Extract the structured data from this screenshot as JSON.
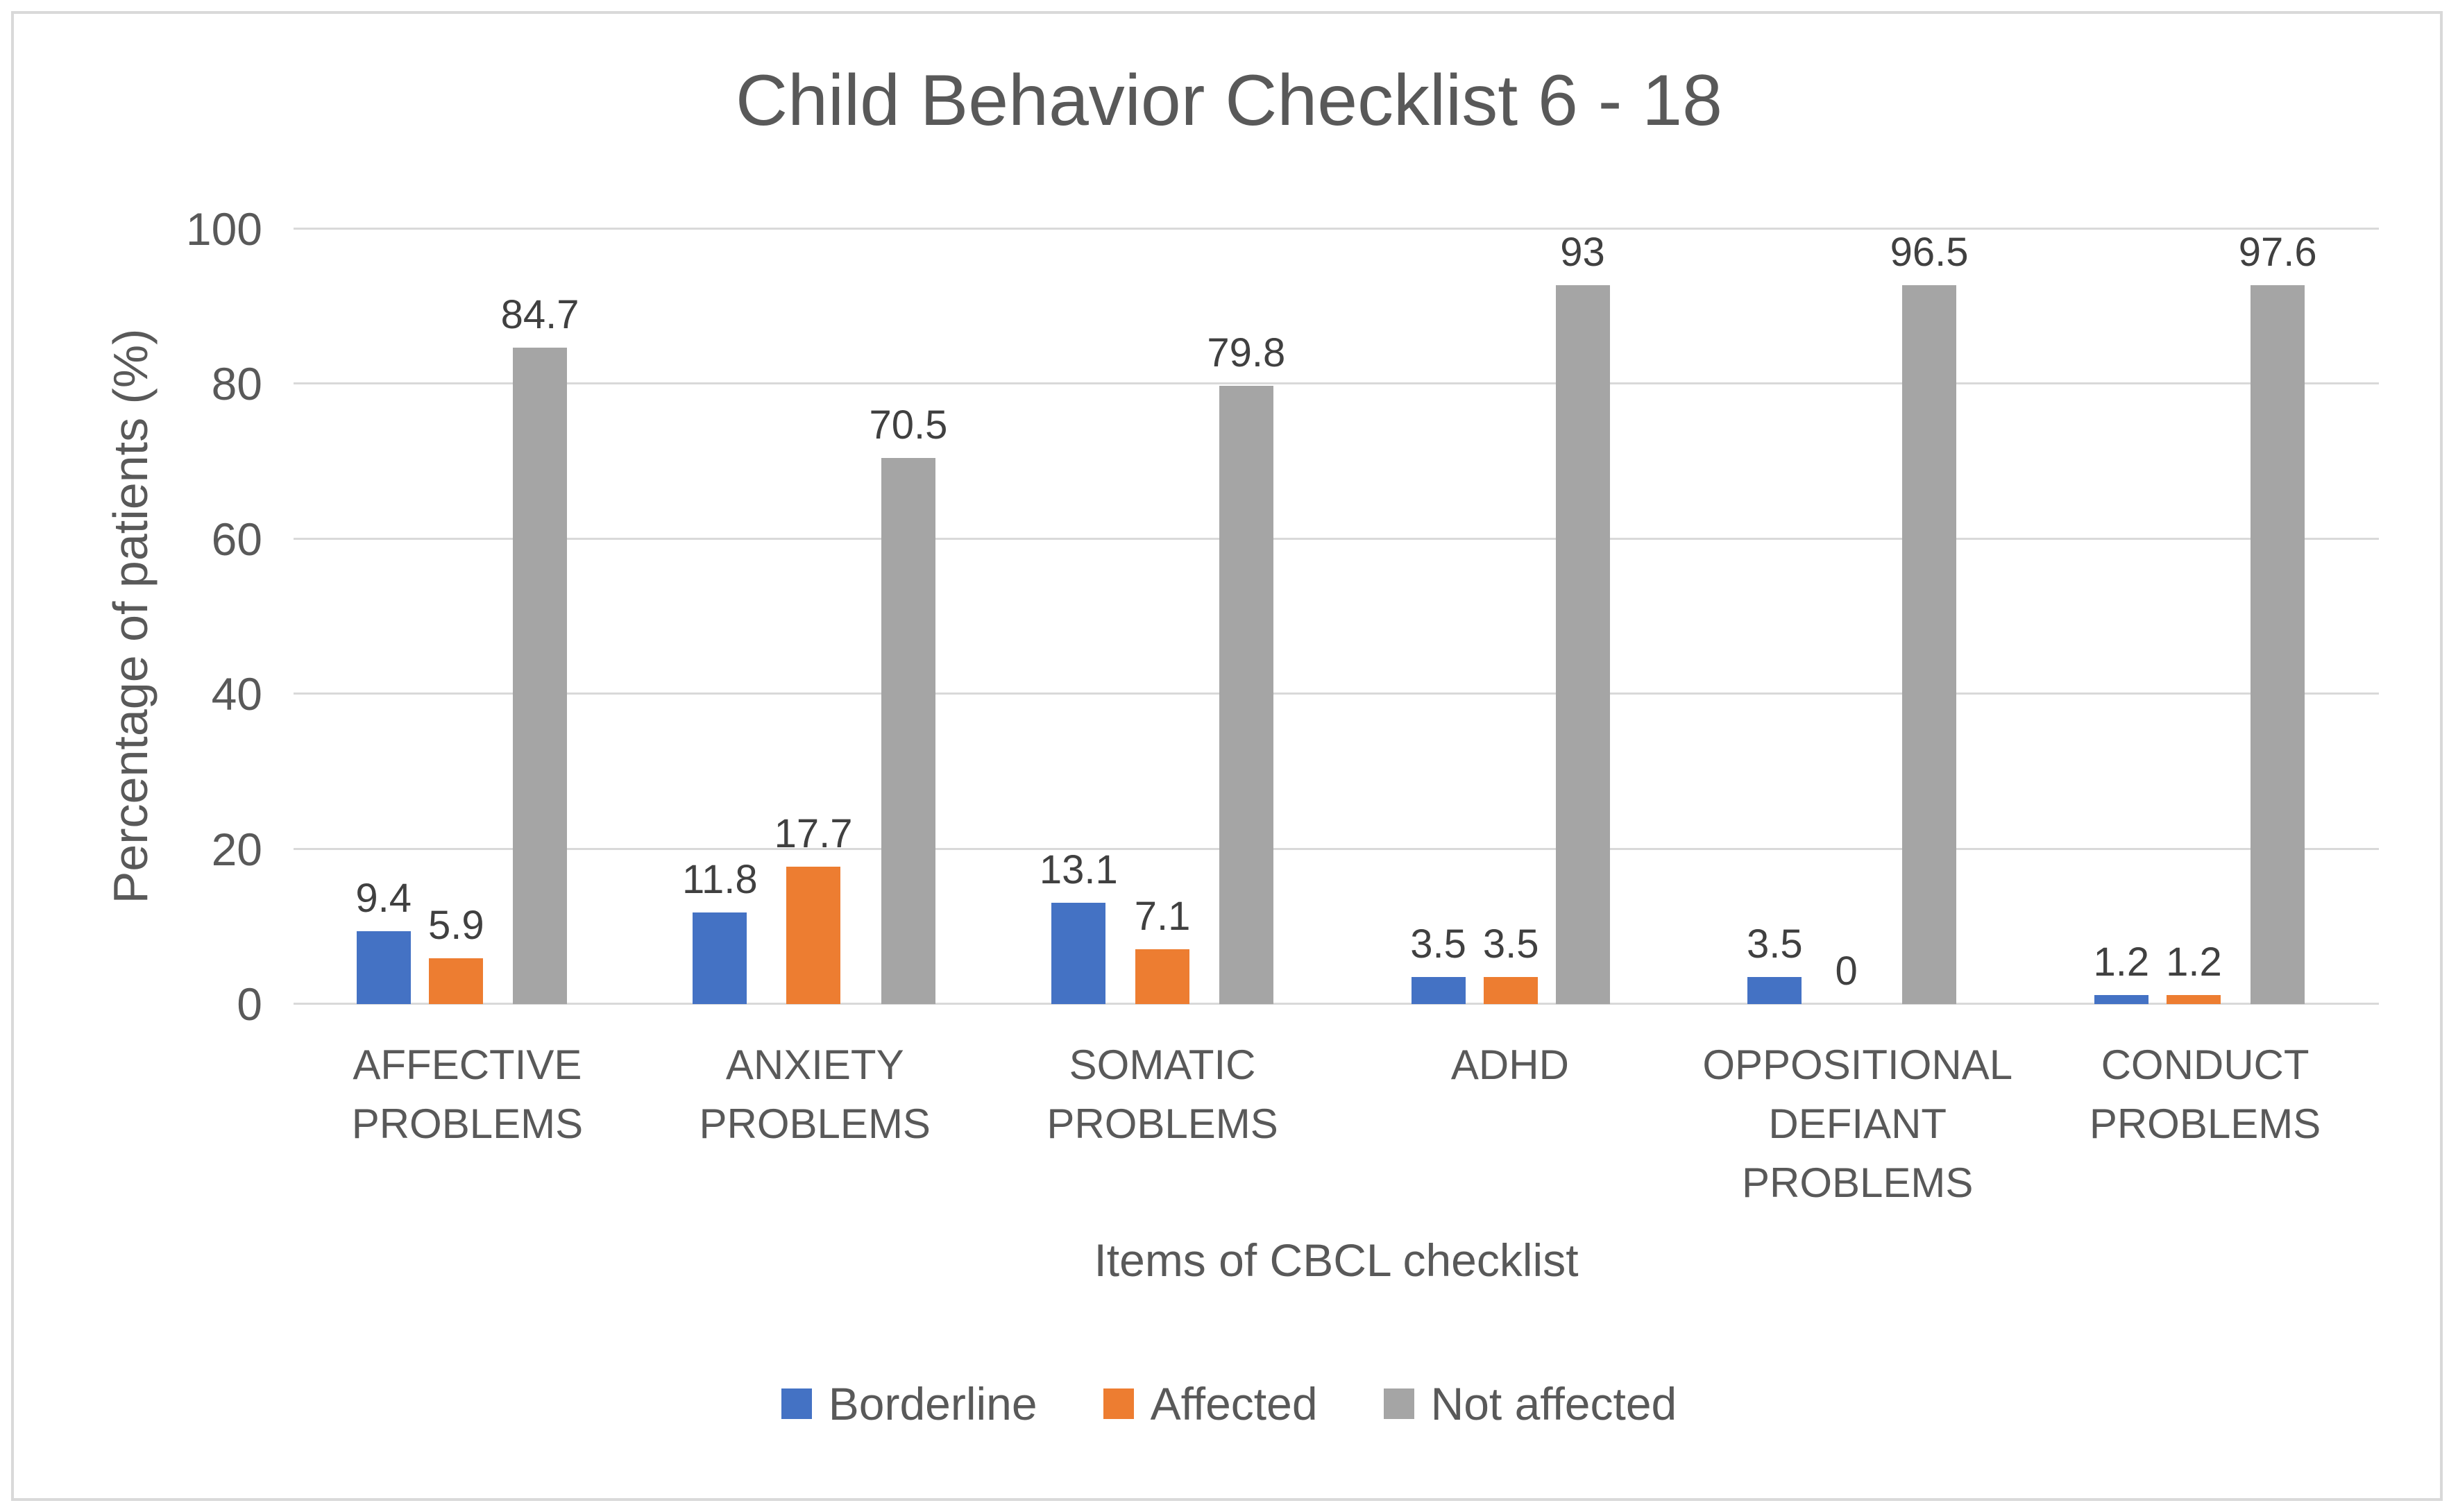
{
  "chart_data": {
    "type": "bar",
    "title": "Child Behavior Checklist 6 - 18",
    "xlabel": "Items of CBCL checklist",
    "ylabel": "Percentage of patients (%)",
    "ylim": [
      0,
      100
    ],
    "yticks": [
      0,
      20,
      40,
      60,
      80,
      100
    ],
    "grid": true,
    "legend_position": "bottom",
    "categories": [
      "AFFECTIVE PROBLEMS",
      "ANXIETY PROBLEMS",
      "SOMATIC PROBLEMS",
      "ADHD",
      "OPPOSITIONAL DEFIANT PROBLEMS",
      "CONDUCT PROBLEMS"
    ],
    "category_lines": [
      [
        "AFFECTIVE",
        "PROBLEMS"
      ],
      [
        "ANXIETY",
        "PROBLEMS"
      ],
      [
        "SOMATIC",
        "PROBLEMS"
      ],
      [
        "ADHD"
      ],
      [
        "OPPOSITIONAL",
        "DEFIANT",
        "PROBLEMS"
      ],
      [
        "CONDUCT",
        "PROBLEMS"
      ]
    ],
    "series": [
      {
        "name": "Borderline",
        "color": "#4472C4",
        "values": [
          9.4,
          11.8,
          13.1,
          3.5,
          3.5,
          1.2
        ]
      },
      {
        "name": "Affected",
        "color": "#ED7D31",
        "values": [
          5.9,
          17.7,
          7.1,
          3.5,
          0,
          1.2
        ]
      },
      {
        "name": "Not affected",
        "color": "#A5A5A5",
        "values": [
          84.7,
          70.5,
          79.8,
          93,
          96.5,
          97.6
        ]
      }
    ]
  },
  "colors": {
    "background": "#FFFFFF",
    "frame_border": "#D9D9D9",
    "gridline": "#D9D9D9",
    "axis_line": "#D9D9D9",
    "title_text": "#595959",
    "axis_text": "#595959",
    "data_label_text": "#404040"
  }
}
